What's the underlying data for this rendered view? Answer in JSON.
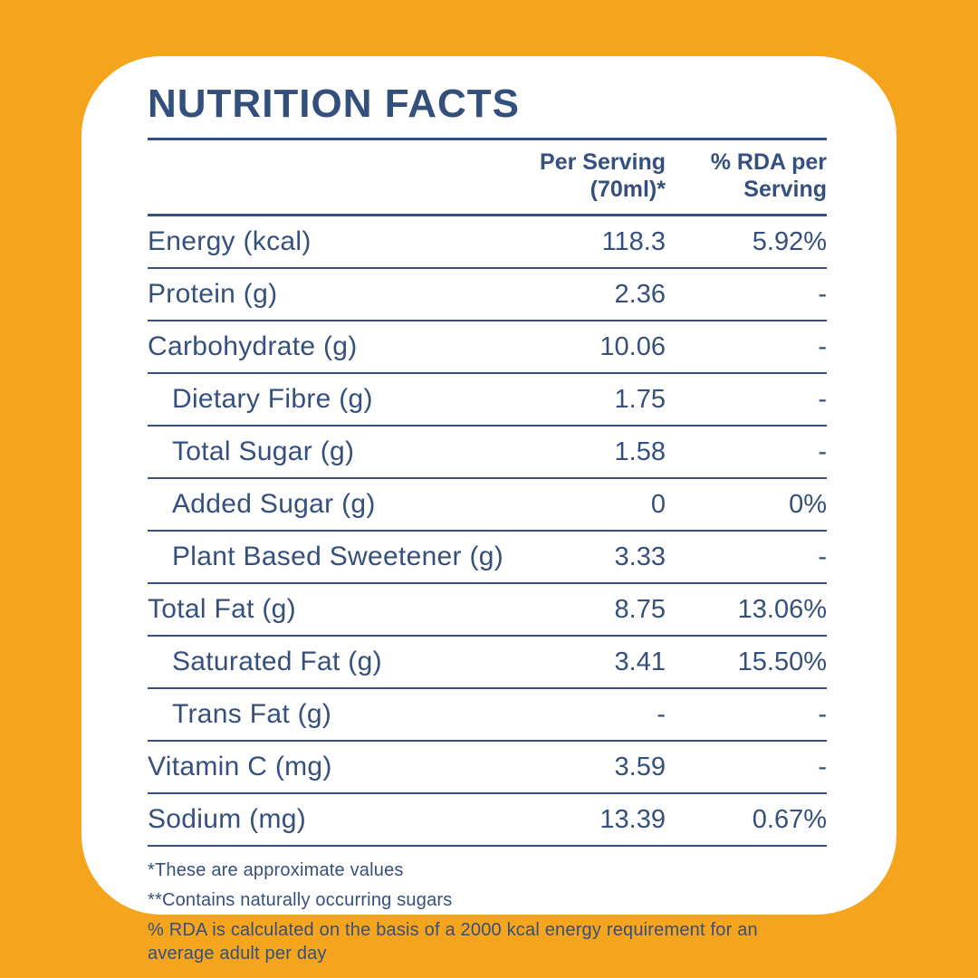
{
  "colors": {
    "background": "#F5A41E",
    "card": "#FFFFFF",
    "text": "#35507D"
  },
  "title": "NUTRITION FACTS",
  "table": {
    "columns": [
      {
        "line1": "Per Serving",
        "line2": "(70ml)*"
      },
      {
        "line1": "% RDA per",
        "line2": "Serving"
      }
    ],
    "rows": [
      {
        "label": "Energy (kcal)",
        "indent": false,
        "per_serving": "118.3",
        "rda": "5.92%"
      },
      {
        "label": "Protein (g)",
        "indent": false,
        "per_serving": "2.36",
        "rda": "-"
      },
      {
        "label": "Carbohydrate (g)",
        "indent": false,
        "per_serving": "10.06",
        "rda": "-"
      },
      {
        "label": "Dietary Fibre (g)",
        "indent": true,
        "per_serving": "1.75",
        "rda": "-"
      },
      {
        "label": "Total Sugar (g)",
        "indent": true,
        "per_serving": "1.58",
        "rda": "-"
      },
      {
        "label": "Added Sugar (g)",
        "indent": true,
        "per_serving": "0",
        "rda": "0%"
      },
      {
        "label": "Plant Based Sweetener (g)",
        "indent": true,
        "per_serving": "3.33",
        "rda": "-"
      },
      {
        "label": "Total Fat (g)",
        "indent": false,
        "per_serving": "8.75",
        "rda": "13.06%"
      },
      {
        "label": "Saturated Fat (g)",
        "indent": true,
        "per_serving": "3.41",
        "rda": "15.50%"
      },
      {
        "label": "Trans Fat (g)",
        "indent": true,
        "per_serving": "-",
        "rda": "-"
      },
      {
        "label": "Vitamin C (mg)",
        "indent": false,
        "per_serving": "3.59",
        "rda": "-"
      },
      {
        "label": "Sodium (mg)",
        "indent": false,
        "per_serving": "13.39",
        "rda": "0.67%"
      }
    ]
  },
  "footnotes": [
    "*These are approximate values",
    "**Contains naturally occurring sugars",
    "%  RDA is calculated on the basis of a 2000 kcal energy requirement for an average adult per day"
  ]
}
